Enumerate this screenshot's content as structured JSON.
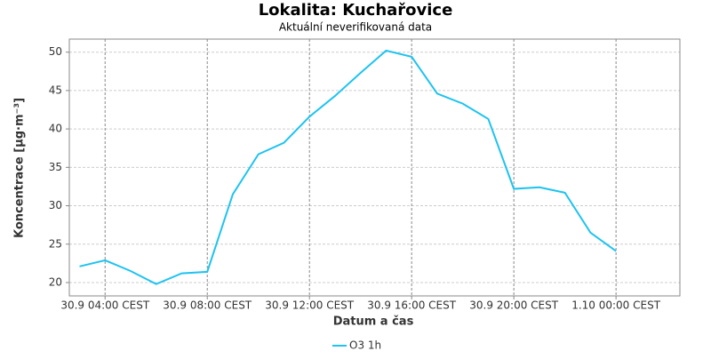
{
  "chart_data": {
    "type": "line",
    "title": "Lokalita: Kuchařovice",
    "subtitle": "Aktuální neverifikovaná data",
    "x_label": "Datum a čas",
    "y_label": "Koncentrace [µg·m⁻³]",
    "x": [
      3,
      4,
      5,
      6,
      7,
      8,
      9,
      10,
      11,
      12,
      13,
      14,
      15,
      16,
      17,
      18,
      19,
      20,
      21,
      22,
      23,
      24
    ],
    "series": [
      {
        "name": "O3 1h",
        "color": "#1ec3f0",
        "values": [
          22.1,
          22.9,
          21.5,
          19.8,
          21.2,
          21.4,
          31.5,
          36.7,
          38.2,
          41.6,
          44.3,
          47.3,
          50.2,
          49.4,
          44.6,
          43.3,
          41.3,
          32.2,
          32.4,
          31.7,
          26.5,
          24.1
        ]
      }
    ],
    "xlim": [
      2.6,
      26.5
    ],
    "xticks": [
      {
        "value": 4,
        "label": "30.9 04:00 CEST"
      },
      {
        "value": 8,
        "label": "30.9 08:00 CEST"
      },
      {
        "value": 12,
        "label": "30.9 12:00 CEST"
      },
      {
        "value": 16,
        "label": "30.9 16:00 CEST"
      },
      {
        "value": 20,
        "label": "30.9 20:00 CEST"
      },
      {
        "value": 24,
        "label": "1.10 00:00 CEST"
      }
    ],
    "ylim": [
      18.26,
      51.7
    ],
    "yticks": [
      20,
      25,
      30,
      35,
      40,
      45,
      50
    ],
    "grid": true,
    "legend": "bottom"
  }
}
